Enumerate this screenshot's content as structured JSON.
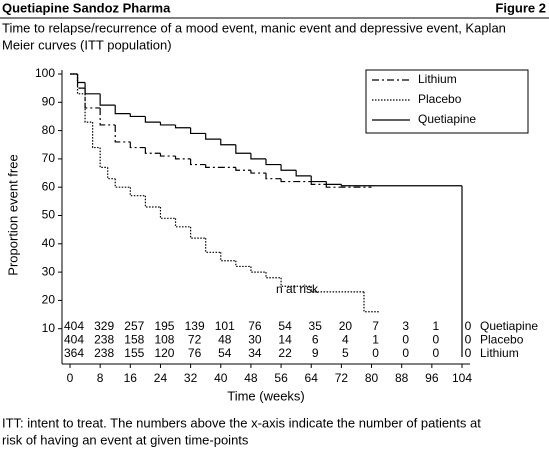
{
  "chart_data": {
    "type": "km",
    "header": "Quetiapine Sandoz Pharma",
    "figure_label": "Figure 2",
    "subtitle": [
      "Time to relapse/recurrence of a mood event, manic event and depressive event, Kaplan",
      "Meier curves (ITT population)"
    ],
    "xlabel": "Time (weeks)",
    "ylabel": "Proportion event free",
    "xlim": [
      0,
      104
    ],
    "ylim": [
      0,
      100
    ],
    "xticks": [
      0,
      8,
      16,
      24,
      32,
      40,
      48,
      56,
      64,
      72,
      80,
      88,
      96,
      104
    ],
    "yticks": [
      10,
      20,
      30,
      40,
      50,
      60,
      70,
      80,
      90,
      100
    ],
    "series": [
      {
        "name": "Lithium",
        "color": "#000000",
        "dash": "7,3,2,3",
        "x": [
          0,
          2,
          4,
          8,
          12,
          16,
          20,
          24,
          28,
          32,
          36,
          44,
          48,
          52,
          56,
          64,
          68,
          80
        ],
        "values": [
          100,
          95,
          88,
          82,
          76,
          74,
          72,
          71,
          70,
          68,
          67,
          66,
          65,
          63,
          62,
          61,
          60,
          60
        ]
      },
      {
        "name": "Placebo",
        "color": "#000000",
        "dash": "1.5,1.5",
        "x": [
          0,
          2,
          4,
          6,
          8,
          10,
          12,
          16,
          20,
          24,
          28,
          32,
          36,
          40,
          44,
          48,
          52,
          56,
          64,
          76,
          78,
          82
        ],
        "values": [
          100,
          93,
          83,
          74,
          67,
          63,
          60,
          57,
          53,
          49,
          46,
          42,
          37,
          34,
          32,
          30,
          28,
          25,
          23,
          23,
          16,
          16
        ]
      },
      {
        "name": "Quetiapine",
        "color": "#000000",
        "dash": "none",
        "x": [
          0,
          2,
          4,
          8,
          12,
          16,
          20,
          24,
          28,
          32,
          36,
          40,
          44,
          48,
          52,
          56,
          60,
          64,
          68,
          72,
          104
        ],
        "values": [
          100,
          97,
          93,
          89,
          86,
          85,
          83,
          82,
          81,
          79,
          77,
          75,
          72,
          70,
          68,
          66,
          64,
          62,
          61,
          60.5,
          0
        ]
      }
    ],
    "risk_table": {
      "title": "n at risk",
      "rows": [
        {
          "name": "Quetiapine",
          "values": [
            404,
            329,
            257,
            195,
            139,
            101,
            76,
            54,
            35,
            20,
            7,
            3,
            1,
            0
          ]
        },
        {
          "name": "Placebo",
          "values": [
            404,
            238,
            158,
            108,
            72,
            48,
            30,
            14,
            6,
            4,
            1,
            0,
            0,
            0
          ]
        },
        {
          "name": "Lithium",
          "values": [
            364,
            238,
            155,
            120,
            76,
            54,
            34,
            22,
            9,
            5,
            0,
            0,
            0,
            0
          ]
        }
      ]
    },
    "footnote": [
      "ITT: intent to treat. The numbers above the x-axis indicate the number of patients at",
      "risk of having an event at given time-points"
    ]
  }
}
